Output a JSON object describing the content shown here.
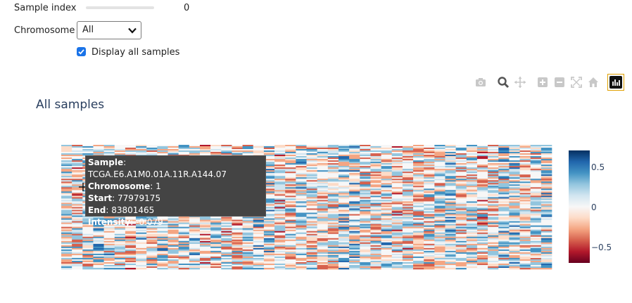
{
  "controls": {
    "sample_index_label": "Sample index",
    "sample_index_value": "0",
    "sample_index_slider_fraction": 0,
    "chromosome_label": "Chromosome",
    "chromosome_selected": "All",
    "display_all_label": "Display all samples",
    "display_all_checked": true
  },
  "modebar": {
    "icons": [
      "camera-icon",
      "zoom-icon",
      "pan-icon",
      "zoom-in-icon",
      "zoom-out-icon",
      "autoscale-icon",
      "home-icon",
      "plotly-logo-icon"
    ],
    "active_color": "#e0a000"
  },
  "tooltip": {
    "sample_key": "Sample",
    "sample_val": "TCGA.E6.A1M0.01A.11R.A144.07",
    "chromosome_key": "Chromosome",
    "chromosome_val": "1",
    "start_key": "Start",
    "start_val": "77979175",
    "end_key": "End",
    "end_val": "83801465",
    "intensity_key": "Intensity",
    "intensity_val": "-0.079"
  },
  "chart_data": {
    "type": "heatmap",
    "title": "All samples",
    "xlabel": "",
    "ylabel": "",
    "colorscale": "RdBu",
    "colorbar": {
      "ticks": [
        0.5,
        0,
        -0.5
      ],
      "tick_labels": [
        "0.5",
        "0",
        "−0.5"
      ],
      "zmin": -0.7,
      "zmax": 0.7,
      "colors": [
        "#053061",
        "#2166ac",
        "#4393c3",
        "#92c5de",
        "#d1e5f0",
        "#f7f7f7",
        "#fddbc7",
        "#f4a582",
        "#d6604d",
        "#b2182b",
        "#67001f"
      ]
    },
    "grid": false
  }
}
